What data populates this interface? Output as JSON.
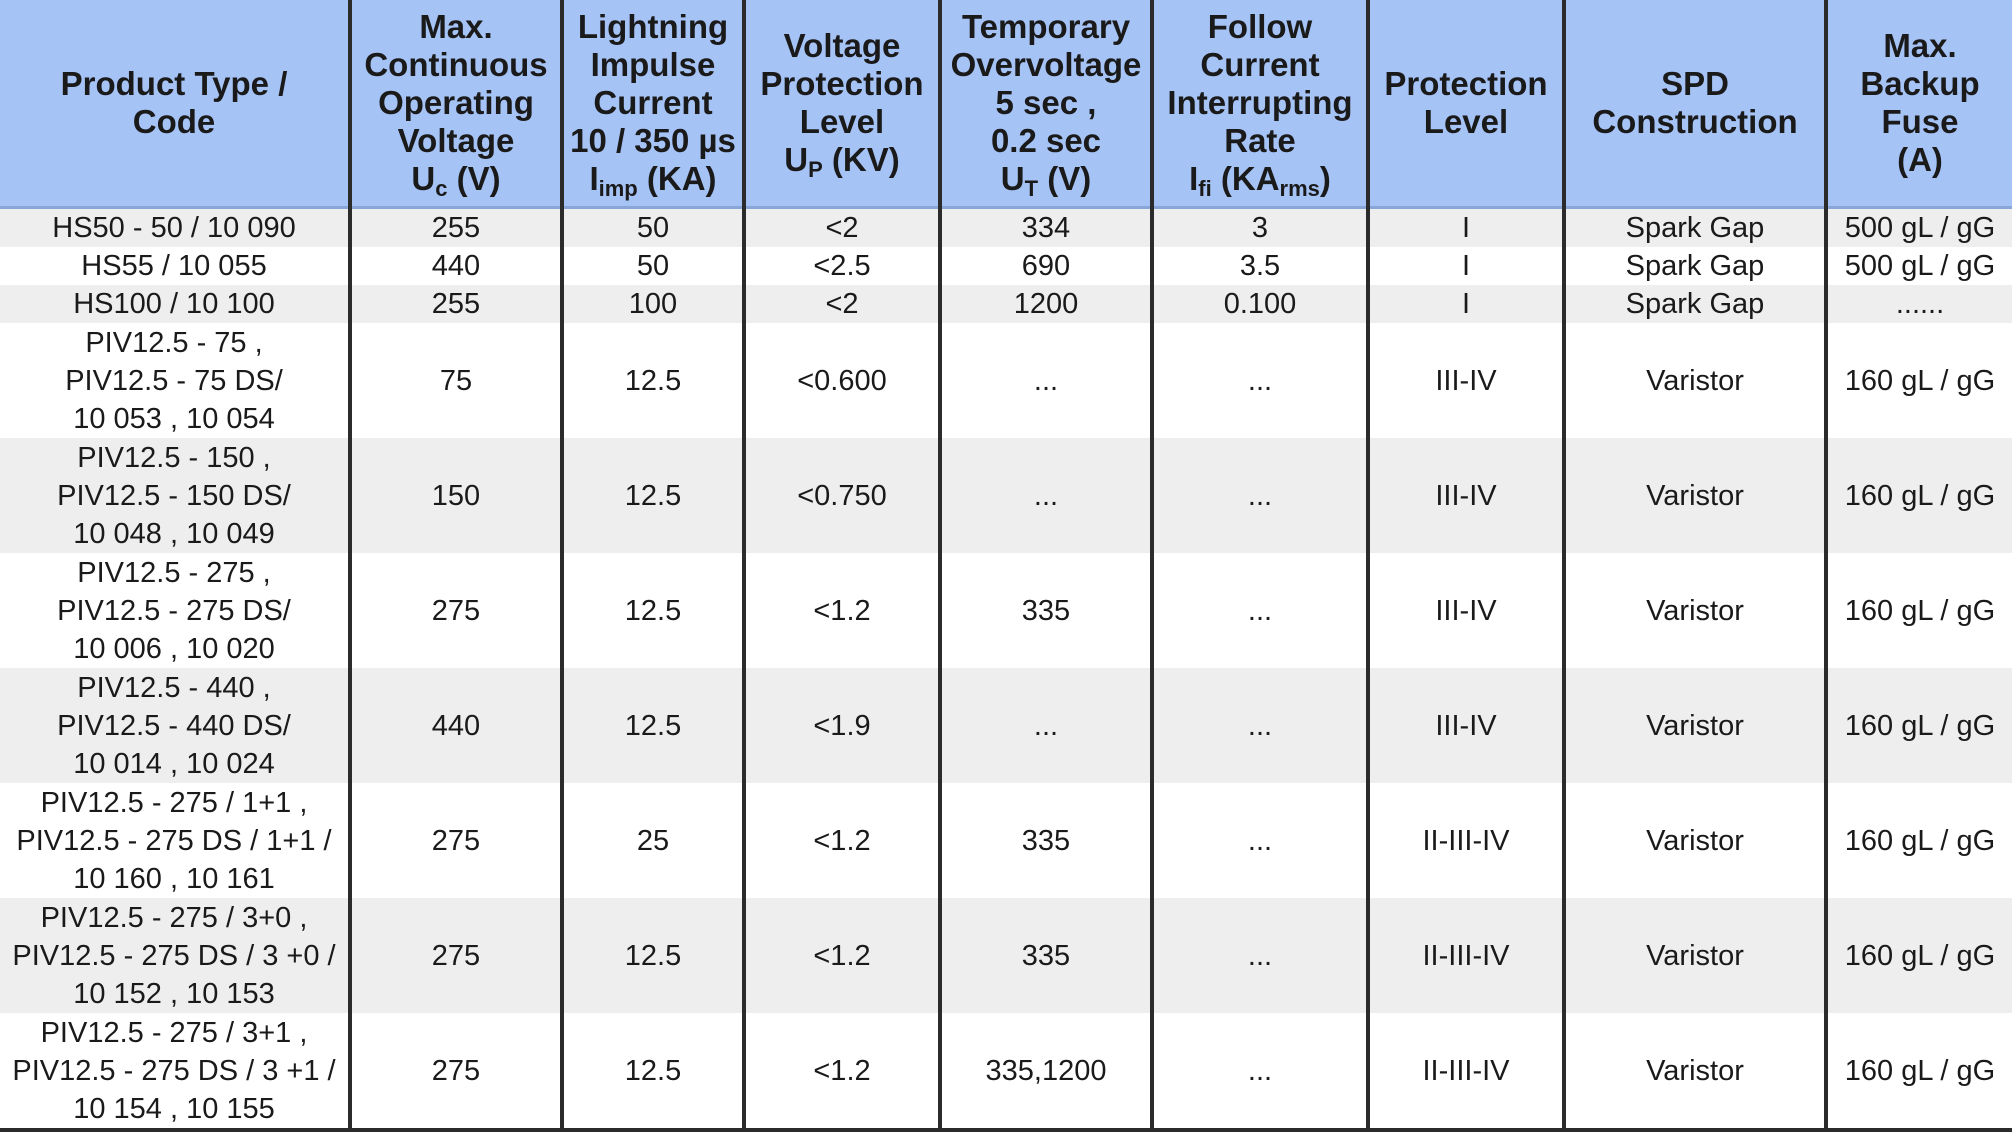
{
  "headers": {
    "product": [
      "Product Type /",
      "Code"
    ],
    "uc": [
      "Max.",
      "Continuous",
      "Operating",
      "Voltage"
    ],
    "uc_sym": "U",
    "uc_sub": "c",
    "uc_unit": " (V)",
    "iimp": [
      "Lightning",
      "Impulse",
      "Current",
      "10 / 350 µs"
    ],
    "iimp_sym": "I",
    "iimp_sub": "imp",
    "iimp_unit": " (KA)",
    "up": [
      "Voltage",
      "Protection",
      "Level"
    ],
    "up_sym": "U",
    "up_sub": "P",
    "up_unit": " (KV)",
    "ut": [
      "Temporary",
      "Overvoltage",
      "5 sec ,",
      "0.2 sec"
    ],
    "ut_sym": "U",
    "ut_sub": "T",
    "ut_unit": " (V)",
    "ifi": [
      "Follow",
      "Current",
      "Interrupting",
      "Rate"
    ],
    "ifi_sym": "I",
    "ifi_sub": "fi",
    "ifi_unit": " (KA",
    "ifi_unit_sub": "rms",
    "ifi_unit_close": ")",
    "protection": [
      "Protection",
      "Level"
    ],
    "spd": [
      "SPD",
      "Construction"
    ],
    "fuse": [
      "Max.",
      "Backup",
      "Fuse",
      "(A)"
    ]
  },
  "rows": [
    {
      "code": [
        "HS50 - 50 / 10 090"
      ],
      "uc": "255",
      "iimp": "50",
      "up": "<2",
      "ut": "334",
      "ifi": "3",
      "level": "I",
      "construction": "Spark Gap",
      "fuse": "500 gL / gG"
    },
    {
      "code": [
        "HS55 / 10 055"
      ],
      "uc": "440",
      "iimp": "50",
      "up": "<2.5",
      "ut": "690",
      "ifi": "3.5",
      "level": "I",
      "construction": "Spark Gap",
      "fuse": "500 gL / gG"
    },
    {
      "code": [
        "HS100 / 10 100"
      ],
      "uc": "255",
      "iimp": "100",
      "up": "<2",
      "ut": "1200",
      "ifi": "0.100",
      "level": "I",
      "construction": "Spark Gap",
      "fuse": "......"
    },
    {
      "code": [
        "PIV12.5 - 75 ,",
        "PIV12.5 - 75 DS/",
        "10 053 , 10 054"
      ],
      "uc": "75",
      "iimp": "12.5",
      "up": "<0.600",
      "ut": "...",
      "ifi": "...",
      "level": "III-IV",
      "construction": "Varistor",
      "fuse": "160 gL / gG"
    },
    {
      "code": [
        "PIV12.5 - 150 ,",
        "PIV12.5 - 150 DS/",
        "10 048 , 10 049"
      ],
      "uc": "150",
      "iimp": "12.5",
      "up": "<0.750",
      "ut": "...",
      "ifi": "...",
      "level": "III-IV",
      "construction": "Varistor",
      "fuse": "160 gL / gG"
    },
    {
      "code": [
        "PIV12.5 - 275 ,",
        "PIV12.5 - 275 DS/",
        "10 006 , 10 020"
      ],
      "uc": "275",
      "iimp": "12.5",
      "up": "<1.2",
      "ut": "335",
      "ifi": "...",
      "level": "III-IV",
      "construction": "Varistor",
      "fuse": "160 gL / gG"
    },
    {
      "code": [
        "PIV12.5 - 440 ,",
        "PIV12.5 - 440 DS/",
        "10 014 , 10 024"
      ],
      "uc": "440",
      "iimp": "12.5",
      "up": "<1.9",
      "ut": "...",
      "ifi": "...",
      "level": "III-IV",
      "construction": "Varistor",
      "fuse": "160 gL / gG"
    },
    {
      "code": [
        "PIV12.5 - 275 / 1+1 ,",
        "PIV12.5 - 275 DS / 1+1 /",
        "10 160 , 10 161"
      ],
      "uc": "275",
      "iimp": "25",
      "up": "<1.2",
      "ut": "335",
      "ifi": "...",
      "level": "II-III-IV",
      "construction": "Varistor",
      "fuse": "160 gL / gG"
    },
    {
      "code": [
        "PIV12.5 - 275 / 3+0 ,",
        "PIV12.5 - 275 DS / 3 +0 /",
        "10 152 , 10 153"
      ],
      "uc": "275",
      "iimp": "12.5",
      "up": "<1.2",
      "ut": "335",
      "ifi": "...",
      "level": "II-III-IV",
      "construction": "Varistor",
      "fuse": "160 gL / gG"
    },
    {
      "code": [
        "PIV12.5 - 275 / 3+1 ,",
        "PIV12.5 - 275 DS / 3 +1 /",
        "10 154 , 10 155"
      ],
      "uc": "275",
      "iimp": "12.5",
      "up": "<1.2",
      "ut": "335,1200",
      "ifi": "...",
      "level": "II-III-IV",
      "construction": "Varistor",
      "fuse": "160 gL / gG"
    }
  ]
}
